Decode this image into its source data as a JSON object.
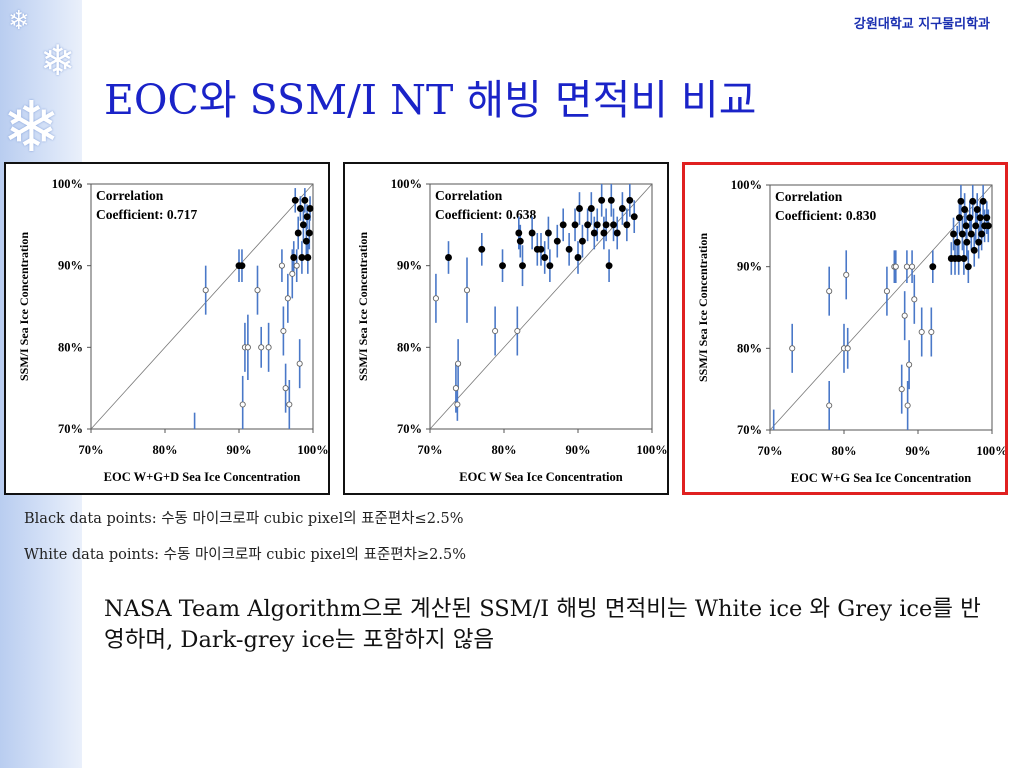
{
  "header": {
    "university": "강원대학교 지구물리학과"
  },
  "slide": {
    "title": "EOC와 SSM/I NT 해빙 면적비 비교",
    "note_black": "Black data points: 수동 마이크로파 cubic pixel의 표준편차≤2.5%",
    "note_white": "White data points: 수동 마이크로파 cubic pixel의 표준편차≥2.5%",
    "body": "NASA Team Algorithm으로 계산된 SSM/I 해빙 면적비는 White ice 와 Grey ice를 반영하며, Dark-grey ice는 포함하지 않음"
  },
  "decor": {
    "snowflake_icon": "❄",
    "accent_color": "#e02020",
    "title_color": "#1a23c8",
    "series_line_color": "#4a78c8"
  },
  "chart_data": [
    {
      "type": "scatter",
      "xlabel": "EOC W+G+D Sea Ice Concentration",
      "ylabel": "SSM/I Sea Ice Concentration",
      "xticks": [
        "70%",
        "80%",
        "90%",
        "100%"
      ],
      "yticks": [
        "70%",
        "80%",
        "90%",
        "100%"
      ],
      "xlim": [
        70,
        100
      ],
      "ylim": [
        70,
        100
      ],
      "annotation": [
        "Correlation",
        "Coefficient: 0.717"
      ],
      "correlation": 0.717,
      "highlighted": false,
      "points": [
        {
          "x": 85.5,
          "y": 87,
          "black": false,
          "err": 3
        },
        {
          "x": 90,
          "y": 90,
          "black": true,
          "err": 2
        },
        {
          "x": 90.4,
          "y": 90,
          "black": true,
          "err": 2
        },
        {
          "x": 90.5,
          "y": 73,
          "black": false,
          "err": 3.5
        },
        {
          "x": 90.8,
          "y": 80,
          "black": false,
          "err": 3
        },
        {
          "x": 91.2,
          "y": 80,
          "black": false,
          "err": 4
        },
        {
          "x": 92.5,
          "y": 87,
          "black": false,
          "err": 3
        },
        {
          "x": 93,
          "y": 80,
          "black": false,
          "err": 2.5
        },
        {
          "x": 94,
          "y": 80,
          "black": false,
          "err": 3
        },
        {
          "x": 95.8,
          "y": 90,
          "black": false,
          "err": 2
        },
        {
          "x": 96,
          "y": 82,
          "black": false,
          "err": 3
        },
        {
          "x": 96.3,
          "y": 75,
          "black": false,
          "err": 3
        },
        {
          "x": 96.6,
          "y": 86,
          "black": false,
          "err": 3
        },
        {
          "x": 96.8,
          "y": 73,
          "black": false,
          "err": 3
        },
        {
          "x": 97.2,
          "y": 89,
          "black": false,
          "err": 3
        },
        {
          "x": 97.4,
          "y": 91,
          "black": true,
          "err": 2
        },
        {
          "x": 97.6,
          "y": 98,
          "black": true,
          "err": 1.5
        },
        {
          "x": 97.8,
          "y": 90,
          "black": false,
          "err": 2
        },
        {
          "x": 98,
          "y": 94,
          "black": true,
          "err": 2
        },
        {
          "x": 98.2,
          "y": 78,
          "black": false,
          "err": 3
        },
        {
          "x": 98.3,
          "y": 97,
          "black": true,
          "err": 1.5
        },
        {
          "x": 98.5,
          "y": 91,
          "black": true,
          "err": 2
        },
        {
          "x": 98.7,
          "y": 95,
          "black": true,
          "err": 2
        },
        {
          "x": 98.9,
          "y": 98,
          "black": true,
          "err": 1.5
        },
        {
          "x": 99.1,
          "y": 93,
          "black": true,
          "err": 2
        },
        {
          "x": 99.2,
          "y": 96,
          "black": true,
          "err": 1.5
        },
        {
          "x": 99.3,
          "y": 91,
          "black": true,
          "err": 2
        },
        {
          "x": 99.5,
          "y": 94,
          "black": true,
          "err": 2
        },
        {
          "x": 99.6,
          "y": 97,
          "black": true,
          "err": 1.5
        }
      ],
      "extra_bars": [
        {
          "x": 84,
          "y1": 70,
          "y2": 72
        }
      ]
    },
    {
      "type": "scatter",
      "xlabel": "EOC W Sea Ice Concentration",
      "ylabel": "SSM/I Sea Ice Concentration",
      "xticks": [
        "70%",
        "80%",
        "90%",
        "100%"
      ],
      "yticks": [
        "70%",
        "80%",
        "90%",
        "100%"
      ],
      "xlim": [
        70,
        100
      ],
      "ylim": [
        70,
        100
      ],
      "annotation": [
        "Correlation",
        "Coefficient: 0.638"
      ],
      "correlation": 0.638,
      "highlighted": false,
      "points": [
        {
          "x": 70.8,
          "y": 86,
          "black": false,
          "err": 3
        },
        {
          "x": 72.5,
          "y": 91,
          "black": true,
          "err": 2
        },
        {
          "x": 73.5,
          "y": 75,
          "black": false,
          "err": 3
        },
        {
          "x": 73.7,
          "y": 73,
          "black": false,
          "err": 2
        },
        {
          "x": 73.8,
          "y": 78,
          "black": false,
          "err": 3
        },
        {
          "x": 75,
          "y": 87,
          "black": false,
          "err": 4
        },
        {
          "x": 77,
          "y": 92,
          "black": true,
          "err": 2
        },
        {
          "x": 78.8,
          "y": 82,
          "black": false,
          "err": 3
        },
        {
          "x": 79.8,
          "y": 90,
          "black": true,
          "err": 2
        },
        {
          "x": 81.8,
          "y": 82,
          "black": false,
          "err": 3
        },
        {
          "x": 82,
          "y": 94,
          "black": true,
          "err": 2
        },
        {
          "x": 82.2,
          "y": 93,
          "black": true,
          "err": 2
        },
        {
          "x": 82.5,
          "y": 90,
          "black": true,
          "err": 2.5
        },
        {
          "x": 83.8,
          "y": 94,
          "black": true,
          "err": 2
        },
        {
          "x": 84.5,
          "y": 92,
          "black": true,
          "err": 2
        },
        {
          "x": 85,
          "y": 92,
          "black": true,
          "err": 2
        },
        {
          "x": 85.5,
          "y": 91,
          "black": true,
          "err": 2
        },
        {
          "x": 86,
          "y": 94,
          "black": true,
          "err": 2
        },
        {
          "x": 86.2,
          "y": 90,
          "black": true,
          "err": 2
        },
        {
          "x": 87.2,
          "y": 93,
          "black": true,
          "err": 2
        },
        {
          "x": 88,
          "y": 95,
          "black": true,
          "err": 2
        },
        {
          "x": 88.8,
          "y": 92,
          "black": true,
          "err": 2
        },
        {
          "x": 89.6,
          "y": 95,
          "black": true,
          "err": 2
        },
        {
          "x": 90,
          "y": 91,
          "black": true,
          "err": 2
        },
        {
          "x": 90.2,
          "y": 97,
          "black": true,
          "err": 2
        },
        {
          "x": 90.6,
          "y": 93,
          "black": true,
          "err": 2
        },
        {
          "x": 91.3,
          "y": 95,
          "black": true,
          "err": 2
        },
        {
          "x": 91.8,
          "y": 97,
          "black": true,
          "err": 2
        },
        {
          "x": 92.2,
          "y": 94,
          "black": true,
          "err": 2
        },
        {
          "x": 92.6,
          "y": 95,
          "black": true,
          "err": 2
        },
        {
          "x": 93.2,
          "y": 98,
          "black": true,
          "err": 2
        },
        {
          "x": 93.5,
          "y": 94,
          "black": true,
          "err": 2
        },
        {
          "x": 93.8,
          "y": 95,
          "black": true,
          "err": 2
        },
        {
          "x": 94.2,
          "y": 90,
          "black": true,
          "err": 2
        },
        {
          "x": 94.5,
          "y": 98,
          "black": true,
          "err": 2
        },
        {
          "x": 94.8,
          "y": 95,
          "black": true,
          "err": 2
        },
        {
          "x": 95.3,
          "y": 94,
          "black": true,
          "err": 2
        },
        {
          "x": 96,
          "y": 97,
          "black": true,
          "err": 2
        },
        {
          "x": 96.6,
          "y": 95,
          "black": true,
          "err": 2
        },
        {
          "x": 97,
          "y": 98,
          "black": true,
          "err": 2
        },
        {
          "x": 97.6,
          "y": 96,
          "black": true,
          "err": 2
        }
      ],
      "extra_bars": []
    },
    {
      "type": "scatter",
      "xlabel": "EOC W+G Sea Ice Concentration",
      "ylabel": "SSM/I Sea Ice Concentration",
      "xticks": [
        "70%",
        "80%",
        "90%",
        "100%"
      ],
      "yticks": [
        "70%",
        "80%",
        "90%",
        "100%"
      ],
      "xlim": [
        70,
        100
      ],
      "ylim": [
        70,
        100
      ],
      "annotation": [
        "Correlation",
        "Coefficient: 0.830"
      ],
      "correlation": 0.83,
      "highlighted": true,
      "points": [
        {
          "x": 73,
          "y": 80,
          "black": false,
          "err": 3
        },
        {
          "x": 78,
          "y": 73,
          "black": false,
          "err": 3
        },
        {
          "x": 78,
          "y": 87,
          "black": false,
          "err": 3
        },
        {
          "x": 80,
          "y": 80,
          "black": false,
          "err": 3
        },
        {
          "x": 80.3,
          "y": 89,
          "black": false,
          "err": 3
        },
        {
          "x": 80.5,
          "y": 80,
          "black": false,
          "err": 2.5
        },
        {
          "x": 85.8,
          "y": 87,
          "black": false,
          "err": 3
        },
        {
          "x": 86.8,
          "y": 90,
          "black": false,
          "err": 2
        },
        {
          "x": 87,
          "y": 90,
          "black": false,
          "err": 2
        },
        {
          "x": 87.8,
          "y": 75,
          "black": false,
          "err": 3
        },
        {
          "x": 88.2,
          "y": 84,
          "black": false,
          "err": 3
        },
        {
          "x": 88.5,
          "y": 90,
          "black": false,
          "err": 2
        },
        {
          "x": 88.6,
          "y": 73,
          "black": false,
          "err": 3
        },
        {
          "x": 88.8,
          "y": 78,
          "black": false,
          "err": 3
        },
        {
          "x": 89.2,
          "y": 90,
          "black": false,
          "err": 2
        },
        {
          "x": 89.5,
          "y": 86,
          "black": false,
          "err": 3
        },
        {
          "x": 90.5,
          "y": 82,
          "black": false,
          "err": 3
        },
        {
          "x": 91.8,
          "y": 82,
          "black": false,
          "err": 3
        },
        {
          "x": 92,
          "y": 90,
          "black": true,
          "err": 2
        },
        {
          "x": 94.5,
          "y": 91,
          "black": true,
          "err": 2
        },
        {
          "x": 94.8,
          "y": 94,
          "black": true,
          "err": 2
        },
        {
          "x": 95,
          "y": 91,
          "black": true,
          "err": 2
        },
        {
          "x": 95.3,
          "y": 93,
          "black": true,
          "err": 2
        },
        {
          "x": 95.5,
          "y": 91,
          "black": true,
          "err": 2
        },
        {
          "x": 95.6,
          "y": 96,
          "black": true,
          "err": 2
        },
        {
          "x": 95.8,
          "y": 98,
          "black": true,
          "err": 2
        },
        {
          "x": 96,
          "y": 94,
          "black": true,
          "err": 2
        },
        {
          "x": 96.2,
          "y": 91,
          "black": true,
          "err": 2
        },
        {
          "x": 96.3,
          "y": 97,
          "black": true,
          "err": 2
        },
        {
          "x": 96.5,
          "y": 95,
          "black": true,
          "err": 2
        },
        {
          "x": 96.6,
          "y": 93,
          "black": true,
          "err": 2
        },
        {
          "x": 96.8,
          "y": 90,
          "black": true,
          "err": 2
        },
        {
          "x": 97,
          "y": 96,
          "black": true,
          "err": 2
        },
        {
          "x": 97.2,
          "y": 94,
          "black": true,
          "err": 2
        },
        {
          "x": 97.4,
          "y": 98,
          "black": true,
          "err": 2
        },
        {
          "x": 97.6,
          "y": 92,
          "black": true,
          "err": 2
        },
        {
          "x": 97.8,
          "y": 95,
          "black": true,
          "err": 2
        },
        {
          "x": 98,
          "y": 97,
          "black": true,
          "err": 2
        },
        {
          "x": 98.2,
          "y": 93,
          "black": true,
          "err": 2
        },
        {
          "x": 98.4,
          "y": 96,
          "black": true,
          "err": 2
        },
        {
          "x": 98.6,
          "y": 94,
          "black": true,
          "err": 2
        },
        {
          "x": 98.8,
          "y": 98,
          "black": true,
          "err": 2
        },
        {
          "x": 99,
          "y": 95,
          "black": true,
          "err": 2
        },
        {
          "x": 99.3,
          "y": 96,
          "black": true,
          "err": 2
        },
        {
          "x": 99.5,
          "y": 95,
          "black": true,
          "err": 2
        }
      ],
      "extra_bars": [
        {
          "x": 70.5,
          "y1": 70,
          "y2": 72.5
        }
      ]
    }
  ]
}
